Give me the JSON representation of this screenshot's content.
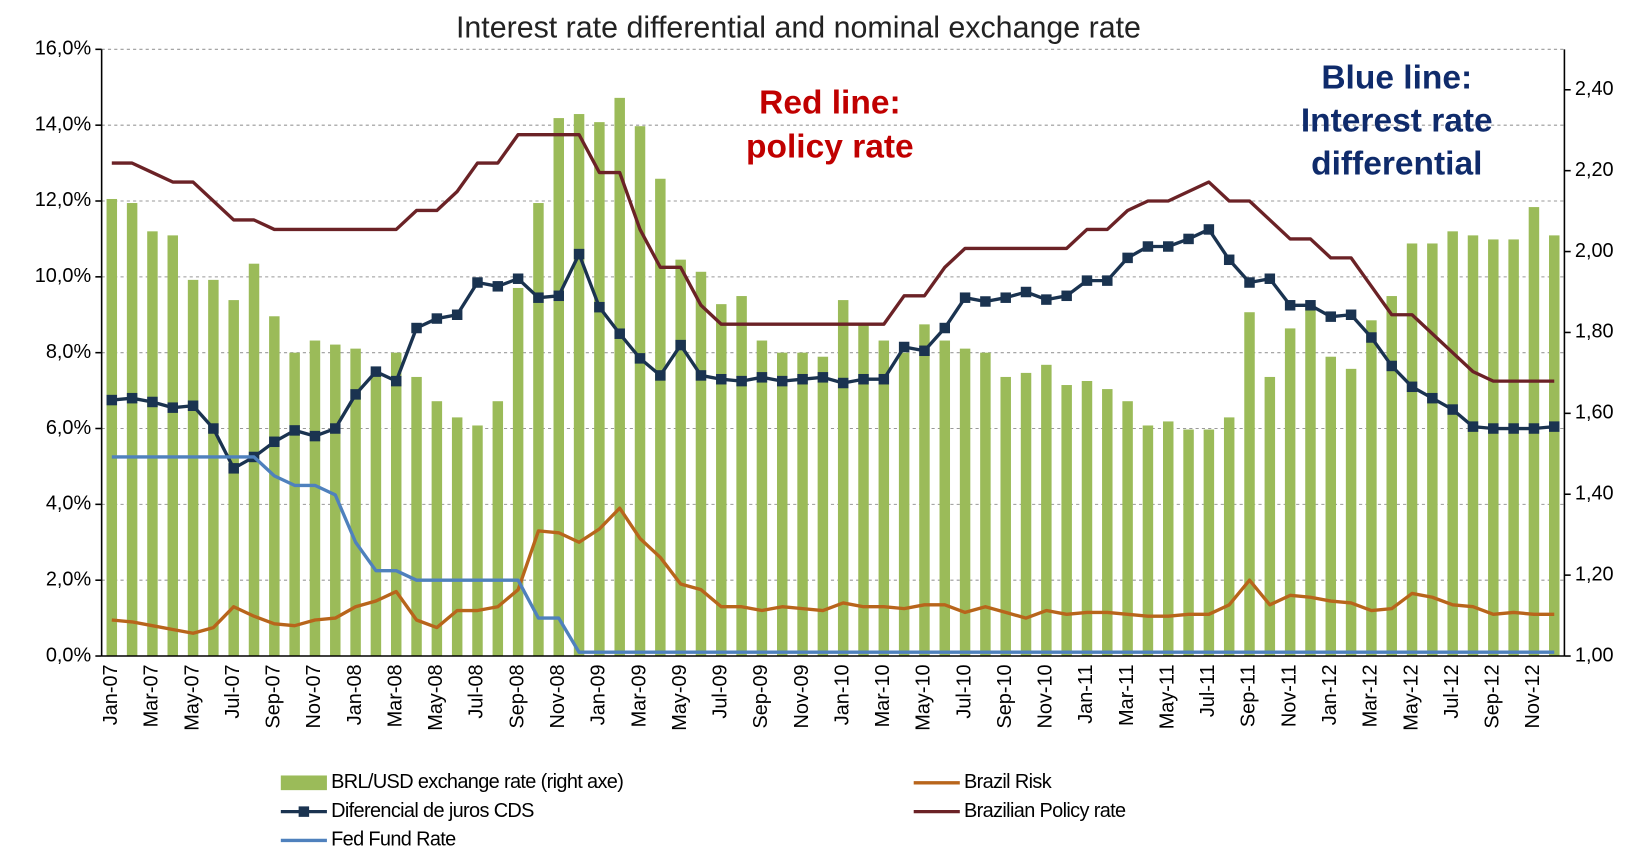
{
  "chart_data": {
    "type": "bar-line",
    "title": "Interest rate differential and nominal exchange rate",
    "categories": [
      "Jan-07",
      null,
      "Mar-07",
      null,
      "May-07",
      null,
      "Jul-07",
      null,
      "Sep-07",
      null,
      "Nov-07",
      null,
      "Jan-08",
      null,
      "Mar-08",
      null,
      "May-08",
      null,
      "Jul-08",
      null,
      "Sep-08",
      null,
      "Nov-08",
      null,
      "Jan-09",
      null,
      "Mar-09",
      null,
      "May-09",
      null,
      "Jul-09",
      null,
      "Sep-09",
      null,
      "Nov-09",
      null,
      "Jan-10",
      null,
      "Mar-10",
      null,
      "May-10",
      null,
      "Jul-10",
      null,
      "Sep-10",
      null,
      "Nov-10",
      null,
      "Jan-11",
      null,
      "Mar-11",
      null,
      "May-11",
      null,
      "Jul-11",
      null,
      "Sep-11",
      null,
      "Nov-11",
      null,
      "Jan-12",
      null,
      "Mar-12",
      null,
      "May-12",
      null,
      "Jul-12",
      null,
      "Sep-12",
      null,
      "Nov-12",
      null
    ],
    "series": [
      {
        "name": "BRL/USD exchange rate (right axe)",
        "type": "bar",
        "axis": "y2",
        "color": "#9bbb59",
        "values": [
          2.13,
          2.12,
          2.05,
          2.04,
          1.93,
          1.93,
          1.88,
          1.97,
          1.84,
          1.75,
          1.78,
          1.77,
          1.76,
          1.7,
          1.75,
          1.69,
          1.63,
          1.59,
          1.57,
          1.63,
          1.91,
          2.12,
          2.33,
          2.34,
          2.32,
          2.38,
          2.31,
          2.18,
          1.98,
          1.95,
          1.87,
          1.89,
          1.78,
          1.75,
          1.75,
          1.74,
          1.88,
          1.82,
          1.78,
          1.75,
          1.82,
          1.78,
          1.76,
          1.75,
          1.69,
          1.7,
          1.72,
          1.67,
          1.68,
          1.66,
          1.63,
          1.57,
          1.58,
          1.56,
          1.56,
          1.59,
          1.85,
          1.69,
          1.81,
          1.87,
          1.74,
          1.71,
          1.83,
          1.89,
          2.02,
          2.02,
          2.05,
          2.04,
          2.03,
          2.03,
          2.11,
          2.04
        ]
      },
      {
        "name": "Brazil Risk",
        "type": "line",
        "color": "#b8651b",
        "values": [
          0.95,
          0.9,
          0.8,
          0.7,
          0.6,
          0.75,
          1.3,
          1.05,
          0.85,
          0.8,
          0.95,
          1.0,
          1.3,
          1.45,
          1.7,
          0.95,
          0.75,
          1.2,
          1.2,
          1.3,
          1.75,
          3.3,
          3.25,
          3.0,
          3.35,
          3.9,
          3.1,
          2.6,
          1.9,
          1.75,
          1.3,
          1.3,
          1.2,
          1.3,
          1.25,
          1.2,
          1.4,
          1.3,
          1.3,
          1.25,
          1.35,
          1.35,
          1.15,
          1.3,
          1.15,
          1.0,
          1.2,
          1.1,
          1.15,
          1.15,
          1.1,
          1.05,
          1.05,
          1.1,
          1.1,
          1.35,
          2.0,
          1.35,
          1.6,
          1.55,
          1.45,
          1.4,
          1.2,
          1.25,
          1.65,
          1.55,
          1.35,
          1.3,
          1.1,
          1.15,
          1.1,
          1.1
        ]
      },
      {
        "name": "Diferencial de juros CDS",
        "type": "line",
        "marker": "square",
        "color": "#1a3350",
        "values": [
          6.75,
          6.8,
          6.7,
          6.55,
          6.6,
          6.0,
          4.95,
          5.25,
          5.65,
          5.95,
          5.8,
          6.0,
          6.9,
          7.5,
          7.25,
          8.65,
          8.9,
          9.0,
          9.85,
          9.75,
          9.95,
          9.45,
          9.5,
          10.6,
          9.2,
          8.5,
          7.85,
          7.4,
          8.2,
          7.4,
          7.3,
          7.25,
          7.35,
          7.25,
          7.3,
          7.35,
          7.2,
          7.3,
          7.3,
          8.15,
          8.05,
          8.65,
          9.45,
          9.35,
          9.45,
          9.6,
          9.4,
          9.5,
          9.9,
          9.9,
          10.5,
          10.8,
          10.8,
          11.0,
          11.25,
          10.45,
          9.85,
          9.95,
          9.25,
          9.25,
          8.95,
          9.0,
          8.4,
          7.65,
          7.1,
          6.8,
          6.5,
          6.05,
          6.0,
          6.0,
          6.0,
          6.05
        ]
      },
      {
        "name": "Brazilian Policy rate",
        "type": "line",
        "color": "#6b2226",
        "values": [
          13.0,
          13.0,
          12.75,
          12.5,
          12.5,
          12.0,
          11.5,
          11.5,
          11.25,
          11.25,
          11.25,
          11.25,
          11.25,
          11.25,
          11.25,
          11.75,
          11.75,
          12.25,
          13.0,
          13.0,
          13.75,
          13.75,
          13.75,
          13.75,
          12.75,
          12.75,
          11.25,
          10.25,
          10.25,
          9.25,
          8.75,
          8.75,
          8.75,
          8.75,
          8.75,
          8.75,
          8.75,
          8.75,
          8.75,
          9.5,
          9.5,
          10.25,
          10.75,
          10.75,
          10.75,
          10.75,
          10.75,
          10.75,
          11.25,
          11.25,
          11.75,
          12.0,
          12.0,
          12.25,
          12.5,
          12.0,
          12.0,
          11.5,
          11.0,
          11.0,
          10.5,
          10.5,
          9.75,
          9.0,
          9.0,
          8.5,
          8.0,
          7.5,
          7.25,
          7.25,
          7.25,
          7.25
        ]
      },
      {
        "name": "Fed Fund Rate",
        "type": "line",
        "color": "#4f81bd",
        "values": [
          5.25,
          5.25,
          5.25,
          5.25,
          5.25,
          5.25,
          5.25,
          5.25,
          4.75,
          4.5,
          4.5,
          4.25,
          3.0,
          2.25,
          2.25,
          2.0,
          2.0,
          2.0,
          2.0,
          2.0,
          2.0,
          1.0,
          1.0,
          0.1,
          0.1,
          0.1,
          0.1,
          0.1,
          0.1,
          0.1,
          0.1,
          0.1,
          0.1,
          0.1,
          0.1,
          0.1,
          0.1,
          0.1,
          0.1,
          0.1,
          0.1,
          0.1,
          0.1,
          0.1,
          0.1,
          0.1,
          0.1,
          0.1,
          0.1,
          0.1,
          0.1,
          0.1,
          0.1,
          0.1,
          0.1,
          0.1,
          0.1,
          0.1,
          0.1,
          0.1,
          0.1,
          0.1,
          0.1,
          0.1,
          0.1,
          0.1,
          0.1,
          0.1,
          0.1,
          0.1,
          0.1,
          0.1
        ]
      }
    ],
    "ylim": [
      0,
      16
    ],
    "yticks": [
      {
        "value": 0,
        "label": "0,0%"
      },
      {
        "value": 2,
        "label": "2,0%"
      },
      {
        "value": 4,
        "label": "4,0%"
      },
      {
        "value": 6,
        "label": "6,0%"
      },
      {
        "value": 8,
        "label": "8,0%"
      },
      {
        "value": 10,
        "label": "10,0%"
      },
      {
        "value": 12,
        "label": "12,0%"
      },
      {
        "value": 14,
        "label": "14,0%"
      },
      {
        "value": 16,
        "label": "16,0%"
      }
    ],
    "y2lim": [
      1.0,
      2.5
    ],
    "y2ticks": [
      {
        "value": 1.0,
        "label": "1,00"
      },
      {
        "value": 1.2,
        "label": "1,20"
      },
      {
        "value": 1.4,
        "label": "1,40"
      },
      {
        "value": 1.6,
        "label": "1,60"
      },
      {
        "value": 1.8,
        "label": "1,80"
      },
      {
        "value": 2.0,
        "label": "2,00"
      },
      {
        "value": 2.2,
        "label": "2,20"
      },
      {
        "value": 2.4,
        "label": "2,40"
      }
    ],
    "grid": true,
    "legend": "bottom",
    "annotations": [
      {
        "lines": [
          "Red line:",
          "policy rate"
        ],
        "color": "#c00000"
      },
      {
        "lines": [
          "Blue line:",
          "Interest rate",
          "differential"
        ],
        "color": "#0f2b6b"
      }
    ]
  }
}
